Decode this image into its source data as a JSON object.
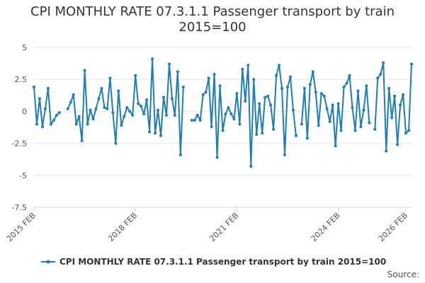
{
  "chart_data": {
    "type": "line",
    "title_line1": "CPI MONTHLY RATE 07.3.1.1 Passenger transport by train",
    "title_line2": "2015=100",
    "xlabel": "",
    "ylabel": "",
    "ylim": [
      -7.5,
      5
    ],
    "y_ticks": [
      "5",
      "2.5",
      "0",
      "-2.5",
      "-5",
      "-7.5"
    ],
    "y_tick_values": [
      5,
      2.5,
      0,
      -2.5,
      -5,
      -7.5
    ],
    "x_ticks": [
      "2015 FEB",
      "2018 FEB",
      "2021 FEB",
      "2024 FEB",
      "2026 FEB"
    ],
    "x_tick_index": [
      0,
      36,
      72,
      108,
      132
    ],
    "grid": true,
    "legend_position": "bottom",
    "series": [
      {
        "name": "CPI MONTHLY RATE 07.3.1.1 Passenger transport by train 2015=100",
        "color": "#1f7db5",
        "values": [
          1.9,
          -1.0,
          1.0,
          -1.2,
          0.2,
          1.8,
          -1.0,
          -0.7,
          -0.3,
          -0.1,
          null,
          null,
          0.2,
          0.7,
          1.3,
          -1.0,
          -0.4,
          -2.3,
          3.2,
          -1.0,
          0.1,
          -0.6,
          0.2,
          1.0,
          1.8,
          0.3,
          0.2,
          2.6,
          -0.1,
          -2.5,
          1.6,
          -1.1,
          -0.4,
          0.3,
          0.0,
          -0.3,
          2.8,
          0.6,
          0.4,
          -0.2,
          0.9,
          -1.6,
          4.1,
          -1.7,
          0.1,
          -1.9,
          1.1,
          -0.3,
          3.7,
          1.0,
          -0.3,
          3.1,
          -3.4,
          1.9,
          null,
          null,
          -0.7,
          -0.7,
          -0.3,
          -0.7,
          1.3,
          1.5,
          2.6,
          -1.2,
          2.9,
          -3.6,
          2.0,
          -1.5,
          -0.2,
          0.3,
          -0.2,
          -0.6,
          1.4,
          -1.0,
          3.3,
          0.8,
          3.6,
          -4.3,
          2.5,
          -1.8,
          0.6,
          -1.7,
          1.1,
          1.2,
          0.5,
          -1.4,
          2.8,
          3.6,
          1.8,
          -3.4,
          1.9,
          2.7,
          0.1,
          -1.9,
          null,
          -1.0,
          1.8,
          -2.1,
          2.1,
          3.1,
          1.5,
          -1.1,
          1.4,
          1.2,
          0.2,
          -0.8,
          0.5,
          -2.7,
          0.6,
          -1.5,
          1.9,
          2.2,
          2.8,
          0.3,
          -1.5,
          1.6,
          -1.2,
          0.1,
          2.0,
          -0.9,
          null,
          -1.4,
          2.6,
          2.9,
          3.8,
          -3.1,
          1.8,
          -0.5,
          1.2,
          -2.6,
          0.5,
          1.3,
          -1.7,
          -1.5,
          3.7
        ]
      }
    ]
  },
  "legend": {
    "label": "CPI MONTHLY RATE 07.3.1.1 Passenger transport by train 2015=100"
  },
  "source": {
    "label": "Source:"
  }
}
